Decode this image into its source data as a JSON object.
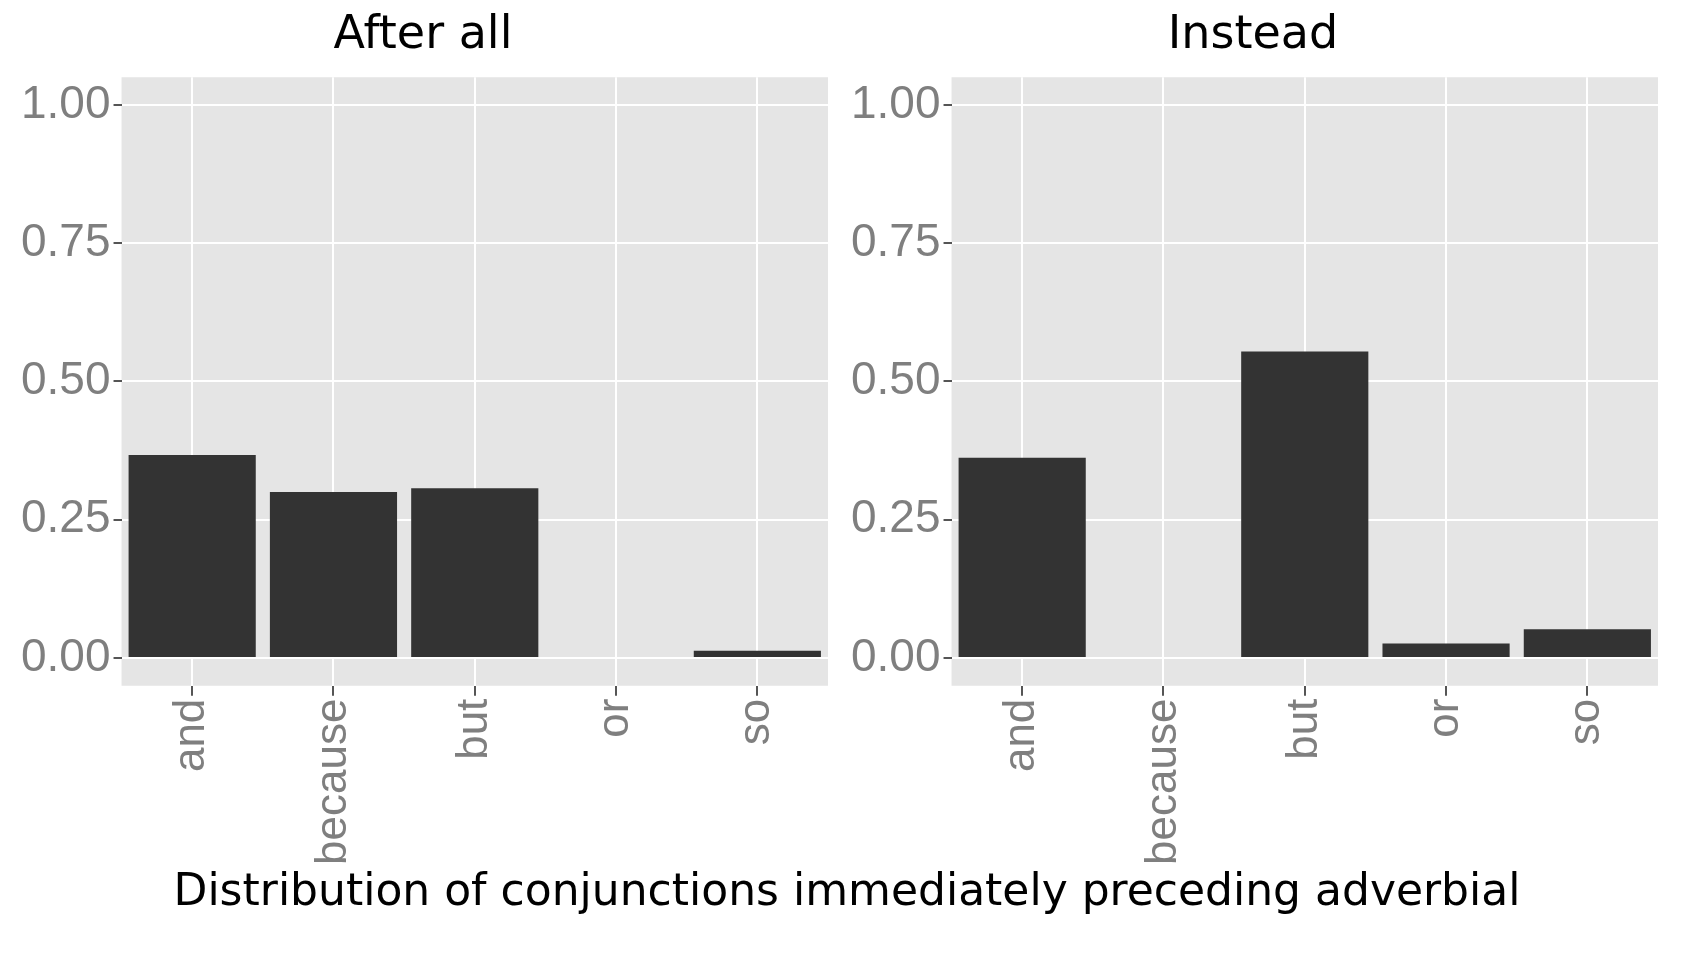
{
  "chart_data": [
    {
      "type": "bar",
      "title": "After all",
      "categories": [
        "and",
        "because",
        "but",
        "or",
        "so"
      ],
      "values": [
        0.367,
        0.3,
        0.307,
        0,
        0.013
      ],
      "color": "#333333",
      "ylim": [
        -0.05,
        1.05
      ],
      "yticks": [
        {
          "value": 0,
          "label": "0.00"
        },
        {
          "value": 0.25,
          "label": "0.25"
        },
        {
          "value": 0.5,
          "label": "0.50"
        },
        {
          "value": 0.75,
          "label": "0.75"
        },
        {
          "value": 1,
          "label": "1.00"
        }
      ],
      "grid": true
    },
    {
      "type": "bar",
      "title": "Instead",
      "categories": [
        "and",
        "because",
        "but",
        "or",
        "so"
      ],
      "values": [
        0.362,
        0,
        0.554,
        0.026,
        0.052
      ],
      "color": "#333333",
      "ylim": [
        -0.05,
        1.05
      ],
      "yticks": [
        {
          "value": 0,
          "label": "0.00"
        },
        {
          "value": 0.25,
          "label": "0.25"
        },
        {
          "value": 0.5,
          "label": "0.50"
        },
        {
          "value": 0.75,
          "label": "0.75"
        },
        {
          "value": 1,
          "label": "1.00"
        }
      ],
      "grid": true,
      "annotations": [
        "Distribution of conjunctions immediately preceding adverbial"
      ]
    }
  ]
}
